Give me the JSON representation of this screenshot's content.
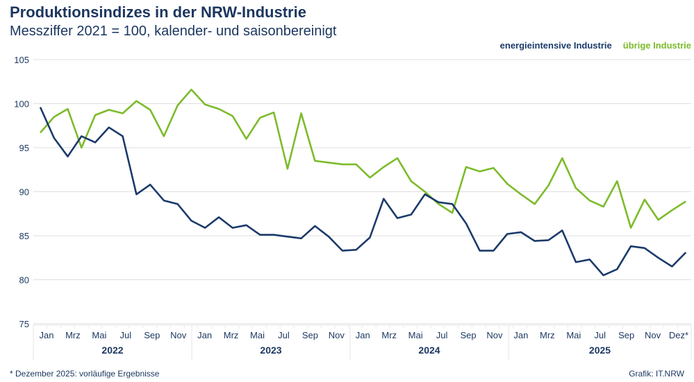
{
  "title": "Produktionsindizes in der NRW-Industrie",
  "subtitle": "Messziffer 2021 = 100, kalender- und saisonbereinigt",
  "footnote": "*  Dezember 2025: vorläufige Ergebnisse",
  "credit": "Grafik: IT.NRW",
  "chart_data": {
    "type": "line",
    "title": "Produktionsindizes in der NRW-Industrie",
    "subtitle": "Messziffer 2021 = 100, kalender- und saisonbereinigt",
    "ylim": [
      75,
      105
    ],
    "yticks": [
      75,
      80,
      85,
      90,
      95,
      100,
      105
    ],
    "grid": true,
    "legend_position": "top-right",
    "month_labels": [
      "Jan",
      "Mrz",
      "Mai",
      "Jul",
      "Sep",
      "Nov",
      "Jan",
      "Mrz",
      "Mai",
      "Jul",
      "Sep",
      "Nov",
      "Jan",
      "Mrz",
      "Mai",
      "Jul",
      "Sep",
      "Nov",
      "Jan",
      "Mrz",
      "Mai",
      "Jul",
      "Sep",
      "Nov",
      "Dez*"
    ],
    "years": [
      "2022",
      "2023",
      "2024",
      "2025"
    ],
    "x": [
      "2022-01",
      "2022-02",
      "2022-03",
      "2022-04",
      "2022-05",
      "2022-06",
      "2022-07",
      "2022-08",
      "2022-09",
      "2022-10",
      "2022-11",
      "2022-12",
      "2023-01",
      "2023-02",
      "2023-03",
      "2023-04",
      "2023-05",
      "2023-06",
      "2023-07",
      "2023-08",
      "2023-09",
      "2023-10",
      "2023-11",
      "2023-12",
      "2024-01",
      "2024-02",
      "2024-03",
      "2024-04",
      "2024-05",
      "2024-06",
      "2024-07",
      "2024-08",
      "2024-09",
      "2024-10",
      "2024-11",
      "2024-12",
      "2025-01",
      "2025-02",
      "2025-03",
      "2025-04",
      "2025-05",
      "2025-06",
      "2025-07",
      "2025-08",
      "2025-09",
      "2025-10",
      "2025-11",
      "2025-12"
    ],
    "series": [
      {
        "name": "energieintensive Industrie",
        "color": "#1b3a6b",
        "values": [
          99.6,
          96.1,
          94.0,
          96.3,
          95.6,
          97.3,
          96.3,
          89.7,
          90.8,
          89.0,
          88.6,
          86.7,
          85.9,
          87.1,
          85.9,
          86.2,
          85.1,
          85.1,
          84.9,
          84.7,
          86.1,
          84.9,
          83.3,
          83.4,
          84.8,
          89.2,
          87.0,
          87.4,
          89.7,
          88.8,
          88.6,
          86.4,
          83.3,
          83.3,
          85.2,
          85.4,
          84.4,
          84.5,
          85.6,
          82.0,
          82.3,
          80.5,
          81.2,
          83.8,
          83.6,
          82.5,
          81.5,
          83.1
        ]
      },
      {
        "name": "übrige Industrie",
        "color": "#7cbb2b",
        "values": [
          96.7,
          98.5,
          99.4,
          95.0,
          98.7,
          99.3,
          98.9,
          100.3,
          99.3,
          96.3,
          99.8,
          101.6,
          99.9,
          99.4,
          98.6,
          96.0,
          98.4,
          99.0,
          92.6,
          98.9,
          93.5,
          93.3,
          93.1,
          93.1,
          91.6,
          92.8,
          93.8,
          91.2,
          90.0,
          88.6,
          87.6,
          92.8,
          92.3,
          92.7,
          90.9,
          89.7,
          88.6,
          90.7,
          93.8,
          90.4,
          89.0,
          88.3,
          91.2,
          85.9,
          89.1,
          86.8,
          87.9,
          88.9
        ]
      }
    ]
  }
}
